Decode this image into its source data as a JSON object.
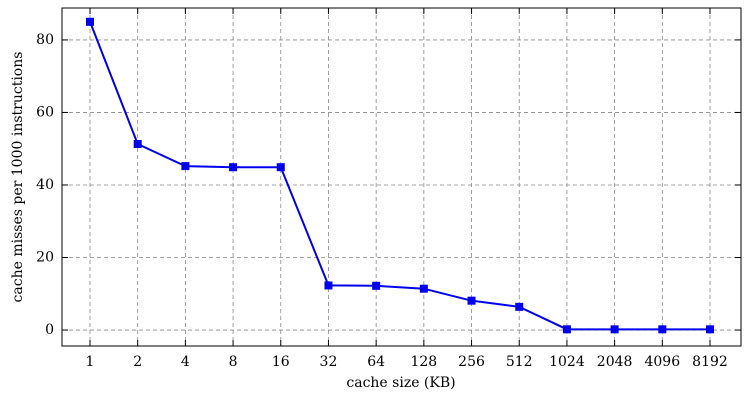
{
  "chart_data": {
    "type": "line",
    "x_label": "cache size (KB)",
    "y_label": "cache misses per 1000 instructions",
    "categories": [
      "1",
      "2",
      "4",
      "8",
      "16",
      "32",
      "64",
      "128",
      "256",
      "512",
      "1024",
      "2048",
      "4096",
      "8192"
    ],
    "series": [
      {
        "name": "cache misses",
        "color": "#0000ee",
        "values": [
          85,
          51.3,
          45.2,
          44.9,
          44.9,
          12.3,
          12.2,
          11.4,
          8.1,
          6.4,
          0.2,
          0.2,
          0.2,
          0.2
        ]
      }
    ],
    "ylim": [
      -4.4,
      88.8
    ],
    "yticks": [
      0,
      20,
      40,
      60,
      80
    ],
    "grid": true
  }
}
